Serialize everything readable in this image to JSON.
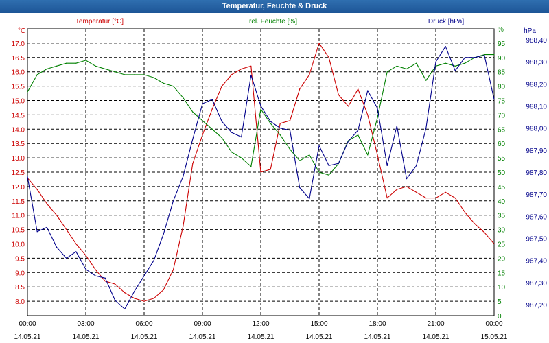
{
  "window": {
    "title": "Temperatur, Feuchte & Druck"
  },
  "chart_data": {
    "type": "line",
    "title": "Temperatur, Feuchte & Druck",
    "grid": true,
    "x_ticks": [
      {
        "time": "00:00",
        "date": "14.05.21"
      },
      {
        "time": "03:00",
        "date": "14.05.21"
      },
      {
        "time": "06:00",
        "date": "14.05.21"
      },
      {
        "time": "09:00",
        "date": "14.05.21"
      },
      {
        "time": "12:00",
        "date": "14.05.21"
      },
      {
        "time": "15:00",
        "date": "14.05.21"
      },
      {
        "time": "18:00",
        "date": "14.05.21"
      },
      {
        "time": "21:00",
        "date": "14.05.21"
      },
      {
        "time": "00:00",
        "date": "15.05.21"
      }
    ],
    "xlim": [
      "14.05.21 00:00",
      "15.05.21 00:00"
    ],
    "axes": {
      "temperature": {
        "label": "Temperatur [°C]",
        "unit": "°C",
        "color": "#cc0000",
        "ylim": [
          7.5,
          17.5
        ],
        "ticks": [
          "8.0",
          "8.5",
          "9.0",
          "9.5",
          "10.0",
          "10.5",
          "11.0",
          "11.5",
          "12.0",
          "12.5",
          "13.0",
          "13.5",
          "14.0",
          "14.5",
          "15.0",
          "15.5",
          "16.0",
          "16.5",
          "17.0"
        ]
      },
      "humidity": {
        "label": "rel. Feuchte [%]",
        "unit": "%",
        "color": "#008000",
        "ylim": [
          0,
          100
        ],
        "ticks": [
          "0",
          "5",
          "10",
          "15",
          "20",
          "25",
          "30",
          "35",
          "40",
          "45",
          "50",
          "55",
          "60",
          "65",
          "70",
          "75",
          "80",
          "85",
          "90",
          "95",
          "%"
        ]
      },
      "pressure": {
        "label": "Druck [hPa]",
        "unit": "hPa",
        "color": "#00008b",
        "ylim": [
          987.15,
          988.45
        ],
        "ticks": [
          "987,20",
          "987,30",
          "987,40",
          "987,50",
          "987,60",
          "987,70",
          "987,80",
          "987,90",
          "988,00",
          "988,10",
          "988,20",
          "988,30",
          "988,40"
        ]
      }
    },
    "series": [
      {
        "name": "Temperatur [°C]",
        "axis": "temperature",
        "color": "#cc0000",
        "x": [
          "00:00",
          "00:30",
          "01:00",
          "01:30",
          "02:00",
          "02:30",
          "03:00",
          "03:30",
          "04:00",
          "04:30",
          "05:00",
          "05:30",
          "06:00",
          "06:30",
          "07:00",
          "07:30",
          "08:00",
          "08:30",
          "09:00",
          "09:30",
          "10:00",
          "10:30",
          "11:00",
          "11:30",
          "12:00",
          "12:30",
          "13:00",
          "13:30",
          "14:00",
          "14:30",
          "15:00",
          "15:30",
          "16:00",
          "16:30",
          "17:00",
          "17:30",
          "18:00",
          "18:30",
          "19:00",
          "19:30",
          "20:00",
          "20:30",
          "21:00",
          "21:30",
          "22:00",
          "22:30",
          "23:00",
          "23:30",
          "24:00"
        ],
        "y": [
          12.3,
          11.9,
          11.4,
          11.0,
          10.5,
          10.0,
          9.6,
          9.1,
          8.7,
          8.6,
          8.3,
          8.1,
          8.0,
          8.1,
          8.4,
          9.1,
          10.6,
          12.8,
          13.8,
          14.7,
          15.5,
          15.9,
          16.1,
          16.2,
          12.5,
          12.6,
          14.2,
          14.3,
          15.4,
          15.9,
          17.0,
          16.5,
          15.2,
          14.8,
          15.4,
          14.5,
          13.1,
          11.6,
          11.9,
          12.0,
          11.8,
          11.6,
          11.6,
          11.8,
          11.6,
          11.1,
          10.7,
          10.4,
          10.0
        ]
      },
      {
        "name": "rel. Feuchte [%]",
        "axis": "humidity",
        "color": "#008000",
        "x": [
          "00:00",
          "00:30",
          "01:00",
          "01:30",
          "02:00",
          "02:30",
          "03:00",
          "03:30",
          "04:00",
          "04:30",
          "05:00",
          "05:30",
          "06:00",
          "06:30",
          "07:00",
          "07:30",
          "08:00",
          "08:30",
          "09:00",
          "09:30",
          "10:00",
          "10:30",
          "11:00",
          "11:30",
          "12:00",
          "12:30",
          "13:00",
          "13:30",
          "14:00",
          "14:30",
          "15:00",
          "15:30",
          "16:00",
          "16:30",
          "17:00",
          "17:30",
          "18:00",
          "18:30",
          "19:00",
          "19:30",
          "20:00",
          "20:30",
          "21:00",
          "21:30",
          "22:00",
          "22:30",
          "23:00",
          "23:30",
          "24:00"
        ],
        "y": [
          78,
          84,
          86,
          87,
          88,
          88,
          89,
          87,
          86,
          85,
          84,
          84,
          84,
          83,
          81,
          80,
          76,
          71,
          68,
          65,
          62,
          57,
          55,
          52,
          72,
          67,
          63,
          58,
          54,
          56,
          50,
          49,
          53,
          61,
          63,
          56,
          69,
          85,
          87,
          86,
          88,
          82,
          87,
          88,
          87,
          88,
          90,
          91,
          91
        ]
      },
      {
        "name": "Druck [hPa]",
        "axis": "pressure",
        "color": "#00008b",
        "x": [
          "00:00",
          "00:30",
          "01:00",
          "01:30",
          "02:00",
          "02:30",
          "03:00",
          "03:30",
          "04:00",
          "04:30",
          "05:00",
          "05:30",
          "06:00",
          "06:30",
          "07:00",
          "07:30",
          "08:00",
          "08:30",
          "09:00",
          "09:30",
          "10:00",
          "10:30",
          "11:00",
          "11:30",
          "12:00",
          "12:30",
          "13:00",
          "13:30",
          "14:00",
          "14:30",
          "15:00",
          "15:30",
          "16:00",
          "16:30",
          "17:00",
          "17:30",
          "18:00",
          "18:30",
          "19:00",
          "19:30",
          "20:00",
          "20:30",
          "21:00",
          "21:30",
          "22:00",
          "22:30",
          "23:00",
          "23:30",
          "24:00"
        ],
        "y": [
          987.78,
          987.53,
          987.55,
          987.46,
          987.41,
          987.44,
          987.36,
          987.33,
          987.32,
          987.22,
          987.18,
          987.26,
          987.33,
          987.4,
          987.52,
          987.67,
          987.78,
          987.95,
          988.11,
          988.13,
          988.03,
          987.98,
          987.96,
          988.24,
          988.1,
          988.03,
          988.0,
          987.99,
          987.73,
          987.68,
          987.92,
          987.83,
          987.84,
          987.94,
          987.99,
          988.17,
          988.09,
          987.83,
          988.01,
          987.77,
          987.83,
          988.0,
          988.3,
          988.37,
          988.26,
          988.32,
          988.32,
          988.33,
          988.13
        ]
      }
    ]
  }
}
